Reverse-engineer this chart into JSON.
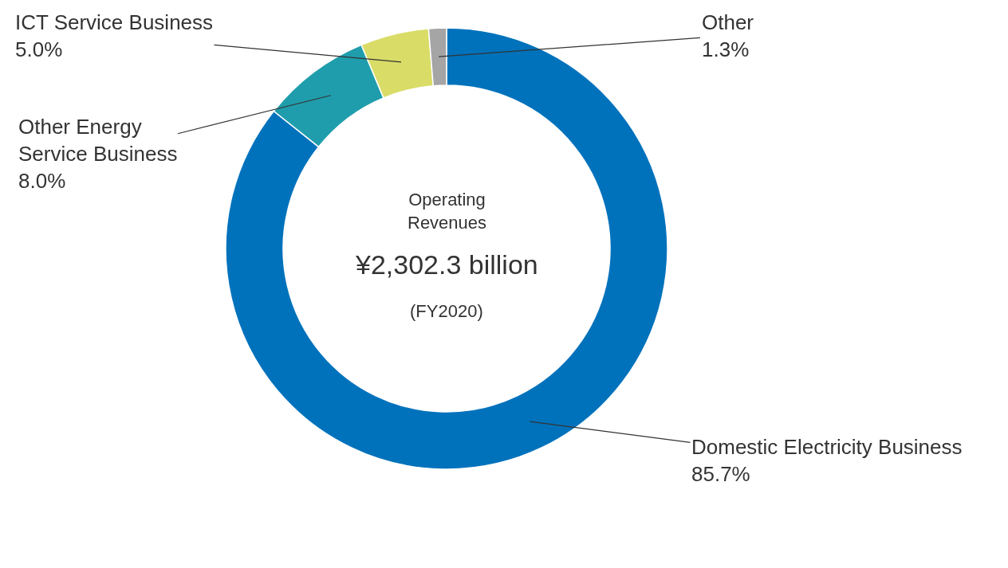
{
  "chart_data": {
    "type": "donut",
    "categories": [
      "Domestic Electricity Business",
      "Other Energy\nService Business",
      "ICT Service Business",
      "Other"
    ],
    "values": [
      85.7,
      8.0,
      5.0,
      1.3
    ],
    "value_labels": [
      "85.7%",
      "8.0%",
      "5.0%",
      "1.3%"
    ],
    "colors": [
      "#0072bc",
      "#209dac",
      "#d9dc66",
      "#a5a5a5"
    ],
    "annotations": [
      "Operating\nRevenues",
      "¥2,302.3 billion",
      "(FY2020)"
    ],
    "legend": false
  }
}
